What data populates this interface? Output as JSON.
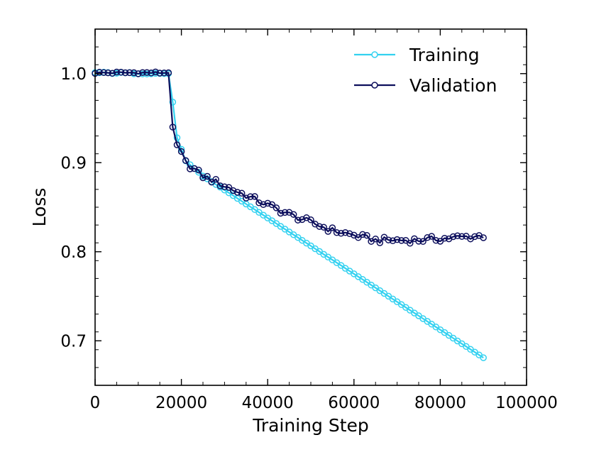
{
  "chart_data": {
    "type": "line",
    "title": "",
    "xlabel": "Training Step",
    "ylabel": "Loss",
    "xlim": [
      0,
      100000
    ],
    "ylim": [
      0.65,
      1.05
    ],
    "xticks": [
      0,
      20000,
      40000,
      60000,
      80000,
      100000
    ],
    "xtick_labels": [
      "0",
      "20000",
      "40000",
      "60000",
      "80000",
      "100000"
    ],
    "yticks": [
      0.7,
      0.8,
      0.9,
      1.0
    ],
    "ytick_labels": [
      "0.7",
      "0.8",
      "0.9",
      "1.0"
    ],
    "legend_position": "top-right",
    "series": [
      {
        "name": "Training",
        "color": "#33d1f0",
        "marker": "open-circle",
        "x_start": 0,
        "x_end": 90000,
        "x_step": 1000,
        "y_segments": [
          {
            "x": [
              0,
              17000
            ],
            "y": [
              1.001,
              1.0
            ]
          },
          {
            "x": [
              17000,
              18000
            ],
            "y": [
              1.0,
              0.968
            ]
          },
          {
            "x": [
              18000,
              19000
            ],
            "y": [
              0.968,
              0.928
            ]
          },
          {
            "x": [
              19000,
              21000
            ],
            "y": [
              0.928,
              0.902
            ]
          },
          {
            "x": [
              21000,
              25000
            ],
            "y": [
              0.902,
              0.885
            ]
          },
          {
            "x": [
              25000,
              90000
            ],
            "y": [
              0.885,
              0.681
            ]
          }
        ]
      },
      {
        "name": "Validation",
        "color": "#0d0f5c",
        "marker": "open-circle",
        "x_start": 0,
        "x_end": 90000,
        "x_step": 1000,
        "y_segments": [
          {
            "x": [
              0,
              17000
            ],
            "y": [
              1.001,
              1.001
            ]
          },
          {
            "x": [
              17000,
              18000
            ],
            "y": [
              1.001,
              0.94
            ]
          },
          {
            "x": [
              18000,
              19000
            ],
            "y": [
              0.94,
              0.92
            ]
          },
          {
            "x": [
              19000,
              21000
            ],
            "y": [
              0.92,
              0.9
            ]
          },
          {
            "x": [
              21000,
              25000
            ],
            "y": [
              0.9,
              0.885
            ]
          },
          {
            "x": [
              25000,
              35000
            ],
            "y": [
              0.885,
              0.863
            ]
          },
          {
            "x": [
              35000,
              45000
            ],
            "y": [
              0.863,
              0.842
            ]
          },
          {
            "x": [
              45000,
              55000
            ],
            "y": [
              0.842,
              0.824
            ]
          },
          {
            "x": [
              55000,
              65000
            ],
            "y": [
              0.824,
              0.813
            ]
          },
          {
            "x": [
              65000,
              75000
            ],
            "y": [
              0.813,
              0.813
            ]
          },
          {
            "x": [
              75000,
              90000
            ],
            "y": [
              0.813,
              0.818
            ]
          }
        ]
      }
    ]
  }
}
